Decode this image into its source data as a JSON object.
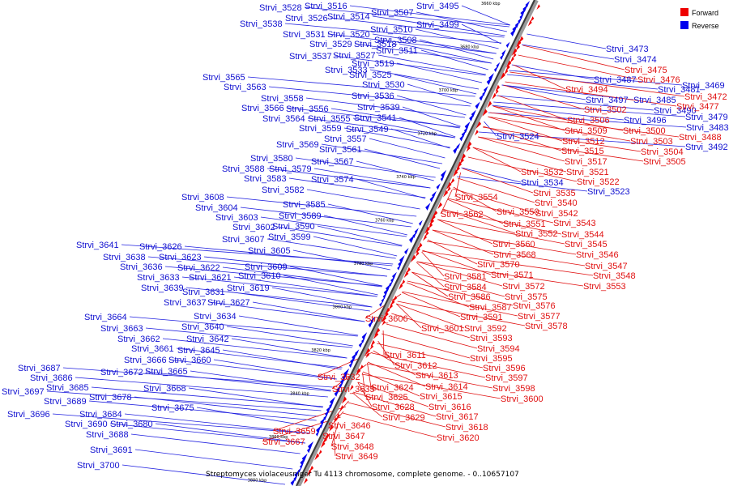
{
  "caption": "Streptomyces violaceusniger Tu 4113 chromosome, complete genome. - 0..10657107",
  "legend": [
    {
      "label": "Forward",
      "color": "#ee0000"
    },
    {
      "label": "Reverse",
      "color": "#0000ee"
    }
  ],
  "axis_ticks": [
    "3660 kbp",
    "3680 kbp",
    "3700 kbp",
    "3720 kbp",
    "3740 kbp",
    "3760 kbp",
    "3780 kbp",
    "3800 kbp",
    "3820 kbp",
    "3840 kbp",
    "3860 kbp",
    "3880 kbp"
  ],
  "reverse_labels": [
    "Strvi_3528",
    "Strvi_3516",
    "Strvi_3507",
    "Strvi_3495",
    "Strvi_3526",
    "Strvi_3514",
    "Strvi_3538",
    "Strvi_3510",
    "Strvi_3499",
    "Strvi_3531",
    "Strvi_3520",
    "Strvi_3508",
    "Strvi_3529",
    "Strvi_3518",
    "Strvi_3511",
    "Strvi_3537",
    "Strvi_3527",
    "Strvi_3519",
    "Strvi_3533",
    "Strvi_3525",
    "Strvi_3565",
    "Strvi_3530",
    "Strvi_3563",
    "Strvi_3536",
    "Strvi_3558",
    "Strvi_3539",
    "Strvi_3566",
    "Strvi_3556",
    "Strvi_3541",
    "Strvi_3564",
    "Strvi_3555",
    "Strvi_3559",
    "Strvi_3549",
    "Strvi_3557",
    "Strvi_3569",
    "Strvi_3561",
    "Strvi_3580",
    "Strvi_3567",
    "Strvi_3588",
    "Strvi_3579",
    "Strvi_3583",
    "Strvi_3574",
    "Strvi_3582",
    "Strvi_3608",
    "Strvi_3585",
    "Strvi_3604",
    "Strvi_3603",
    "Strvi_3589",
    "Strvi_3602",
    "Strvi_3590",
    "Strvi_3607",
    "Strvi_3599",
    "Strvi_3641",
    "Strvi_3626",
    "Strvi_3605",
    "Strvi_3638",
    "Strvi_3623",
    "Strvi_3636",
    "Strvi_3622",
    "Strvi_3609",
    "Strvi_3633",
    "Strvi_3621",
    "Strvi_3610",
    "Strvi_3639",
    "Strvi_3631",
    "Strvi_3619",
    "Strvi_3637",
    "Strvi_3627",
    "Strvi_3634",
    "Strvi_3664",
    "Strvi_3663",
    "Strvi_3640",
    "Strvi_3662",
    "Strvi_3642",
    "Strvi_3661",
    "Strvi_3645",
    "Strvi_3666",
    "Strvi_3660",
    "Strvi_3672",
    "Strvi_3665",
    "Strvi_3687",
    "Strvi_3686",
    "Strvi_3668",
    "Strvi_3697",
    "Strvi_3685",
    "Strvi_3678",
    "Strvi_3689",
    "Strvi_3675",
    "Strvi_3696",
    "Strvi_3684",
    "Strvi_3690",
    "Strvi_3680",
    "Strvi_3688",
    "Strvi_3691",
    "Strvi_3700",
    "Strvi_3473",
    "Strvi_3474",
    "Strvi_3487",
    "Strvi_3469",
    "Strvi_3497",
    "Strvi_3481",
    "Strvi_3485",
    "Strvi_3490",
    "Strvi_3479",
    "Strvi_3496",
    "Strvi_3483",
    "Strvi_3492",
    "Strvi_3524",
    "Strvi_3534",
    "Strvi_3523"
  ],
  "forward_labels": [
    "Strvi_3475",
    "Strvi_3476",
    "Strvi_3494",
    "Strvi_3472",
    "Strvi_3502",
    "Strvi_3477",
    "Strvi_3506",
    "Strvi_3500",
    "Strvi_3509",
    "Strvi_3503",
    "Strvi_3488",
    "Strvi_3512",
    "Strvi_3504",
    "Strvi_3515",
    "Strvi_3505",
    "Strvi_3517",
    "Strvi_3532",
    "Strvi_3521",
    "Strvi_3522",
    "Strvi_3535",
    "Strvi_3554",
    "Strvi_3540",
    "Strvi_3550",
    "Strvi_3542",
    "Strvi_3562",
    "Strvi_3551",
    "Strvi_3543",
    "Strvi_3552",
    "Strvi_3544",
    "Strvi_3560",
    "Strvi_3545",
    "Strvi_3568",
    "Strvi_3546",
    "Strvi_3570",
    "Strvi_3547",
    "Strvi_3581",
    "Strvi_3571",
    "Strvi_3548",
    "Strvi_3584",
    "Strvi_3572",
    "Strvi_3553",
    "Strvi_3586",
    "Strvi_3575",
    "Strvi_3587",
    "Strvi_3576",
    "Strvi_3606",
    "Strvi_3591",
    "Strvi_3577",
    "Strvi_3601",
    "Strvi_3592",
    "Strvi_3578",
    "Strvi_3593",
    "Strvi_3594",
    "Strvi_3611",
    "Strvi_3595",
    "Strvi_3612",
    "Strvi_3596",
    "Strvi_3613",
    "Strvi_3597",
    "Strvi_3632",
    "Strvi_3614",
    "Strvi_3598",
    "Strvi_3635",
    "Strvi_3624",
    "Strvi_3615",
    "Strvi_3600",
    "Strvi_3625",
    "Strvi_3616",
    "Strvi_3628",
    "Strvi_3617",
    "Strvi_3629",
    "Strvi_3618",
    "Strvi_3646",
    "Strvi_3620",
    "Strvi_3659",
    "Strvi_3647",
    "Strvi_3667",
    "Strvi_3648",
    "Strvi_3649"
  ]
}
